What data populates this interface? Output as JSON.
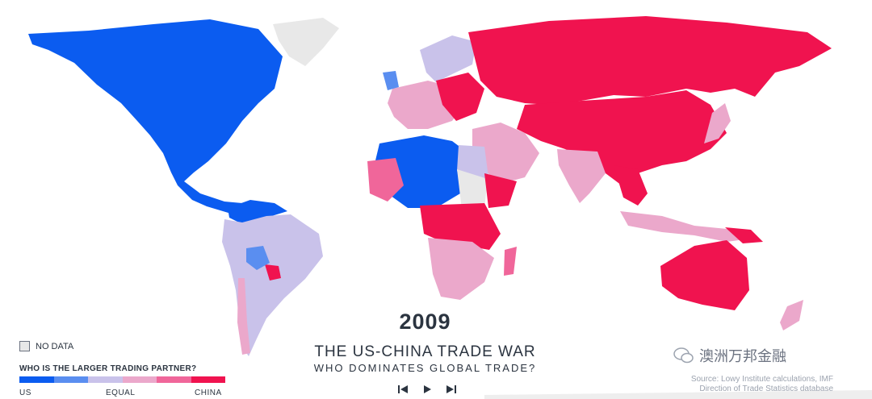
{
  "map": {
    "year": "2009",
    "title": "THE US-CHINA TRADE WAR",
    "subtitle": "WHO DOMINATES GLOBAL TRADE?",
    "colors": {
      "us": "#0b5cf0",
      "us_lean": "#5a8ef0",
      "equal": "#c9c2ea",
      "china_slight": "#eba8cb",
      "china_lean": "#f0669a",
      "china": "#f0134f",
      "nodata": "#e8e8e8"
    }
  },
  "legend": {
    "nodata_label": "NO DATA",
    "question": "WHO IS THE LARGER TRADING PARTNER?",
    "left_label": "US",
    "center_label": "EQUAL",
    "right_label": "CHINA"
  },
  "controls": {
    "prev_icon": "skip-back-icon",
    "play_icon": "play-icon",
    "next_icon": "skip-forward-icon"
  },
  "source": {
    "line1": "Source: Lowy Institute calculations, IMF",
    "line2": "Direction of Trade Statistics database"
  },
  "watermark": {
    "text": "澳洲万邦金融",
    "icon": "wechat-icon"
  }
}
